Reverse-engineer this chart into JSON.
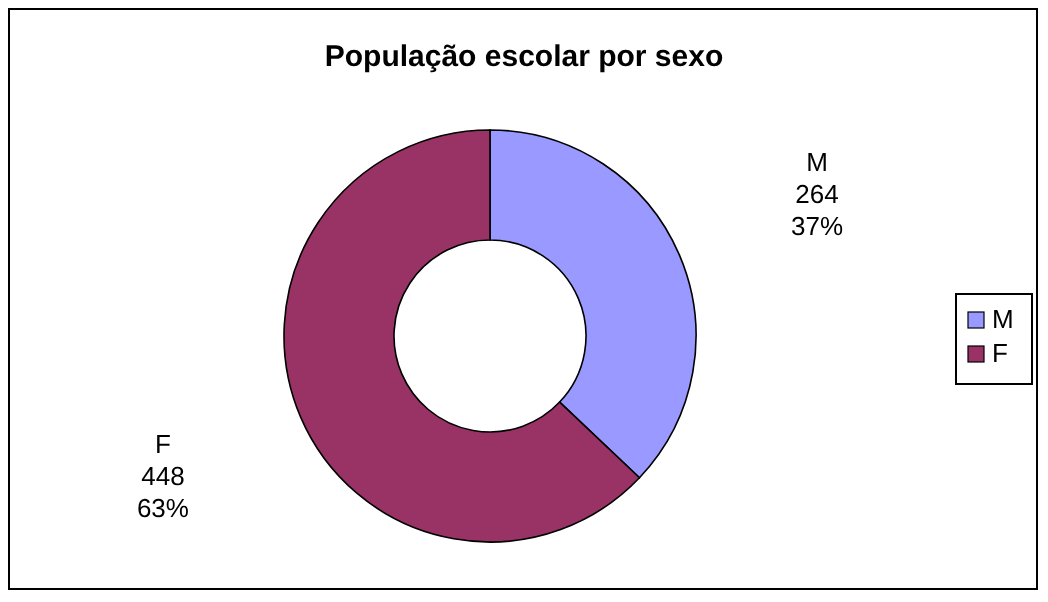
{
  "chart_data": {
    "type": "donut",
    "title": "População escolar por sexo",
    "categories": [
      "M",
      "F"
    ],
    "values": [
      264,
      448
    ],
    "colors": [
      "#9999ff",
      "#993366"
    ],
    "value_labels": [
      "264\n37%",
      "448\n63%"
    ],
    "legend": "right"
  }
}
